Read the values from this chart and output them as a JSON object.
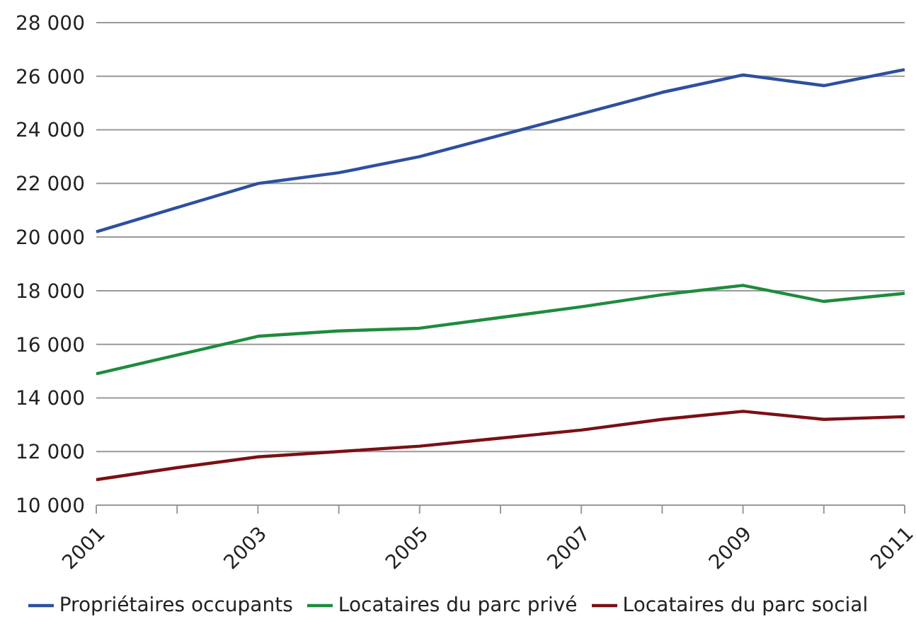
{
  "chart_data": {
    "type": "line",
    "categories": [
      "2001",
      null,
      "2003",
      null,
      "2005",
      null,
      "2007",
      null,
      "2009",
      null,
      "2011"
    ],
    "series": [
      {
        "name": "Propriétaires occupants",
        "color": "#2e4fa0",
        "values": [
          20200,
          21100,
          22000,
          22400,
          23000,
          23800,
          24600,
          25400,
          26050,
          25650,
          26250
        ]
      },
      {
        "name": "Locataires du parc privé",
        "color": "#1e8c3c",
        "values": [
          14900,
          15600,
          16300,
          16500,
          16600,
          17000,
          17400,
          17850,
          18200,
          17600,
          17900
        ]
      },
      {
        "name": "Locataires du parc social",
        "color": "#7a1016",
        "values": [
          10950,
          11400,
          11800,
          12000,
          12200,
          12500,
          12800,
          13200,
          13500,
          13200,
          13300
        ]
      }
    ],
    "ylim": [
      10000,
      28000
    ],
    "yticks": [
      {
        "value": 10000,
        "label": "10 000"
      },
      {
        "value": 12000,
        "label": "12 000"
      },
      {
        "value": 14000,
        "label": "14 000"
      },
      {
        "value": 16000,
        "label": "16 000"
      },
      {
        "value": 18000,
        "label": "18 000"
      },
      {
        "value": 20000,
        "label": "20 000"
      },
      {
        "value": 22000,
        "label": "22 000"
      },
      {
        "value": 24000,
        "label": "24 000"
      },
      {
        "value": 26000,
        "label": "26 000"
      },
      {
        "value": 28000,
        "label": "28 000"
      }
    ],
    "grid": "y",
    "legend": "bottom",
    "marker": "none",
    "line_style": "solid"
  }
}
